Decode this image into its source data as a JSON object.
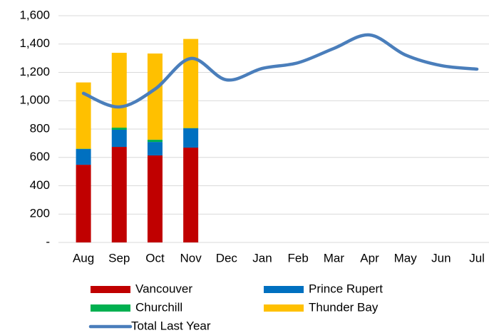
{
  "chart_data": {
    "type": "bar",
    "stacked": true,
    "grid": true,
    "categories": [
      "Aug",
      "Sep",
      "Oct",
      "Nov",
      "Dec",
      "Jan",
      "Feb",
      "Mar",
      "Apr",
      "May",
      "Jun",
      "Jul"
    ],
    "ylim": [
      0,
      1600
    ],
    "yticks": [
      {
        "value": 0,
        "label": "-"
      },
      200,
      400,
      600,
      800,
      {
        "value": 1000,
        "label": "1,000"
      },
      {
        "value": 1200,
        "label": "1,200"
      },
      {
        "value": 1400,
        "label": "1,400"
      },
      {
        "value": 1600,
        "label": "1,600"
      }
    ],
    "series": [
      {
        "name": "Vancouver",
        "color": "#c00000",
        "values": [
          548,
          674,
          614,
          669,
          null,
          null,
          null,
          null,
          null,
          null,
          null,
          null
        ]
      },
      {
        "name": "Prince Rupert",
        "color": "#0070c0",
        "values": [
          111,
          121,
          95,
          136,
          null,
          null,
          null,
          null,
          null,
          null,
          null,
          null
        ]
      },
      {
        "name": "Churchill",
        "color": "#00b050",
        "values": [
          2,
          15,
          16,
          2,
          null,
          null,
          null,
          null,
          null,
          null,
          null,
          null
        ]
      },
      {
        "name": "Thunder Bay",
        "color": "#ffc000",
        "values": [
          468,
          528,
          608,
          629,
          null,
          null,
          null,
          null,
          null,
          null,
          null,
          null
        ]
      },
      {
        "name": "Total Last Year",
        "color": "#4a7ebb",
        "type": "line",
        "smooth": true,
        "values": [
          1052,
          956,
          1082,
          1298,
          1147,
          1228,
          1268,
          1369,
          1464,
          1323,
          1248,
          1223
        ]
      }
    ]
  }
}
